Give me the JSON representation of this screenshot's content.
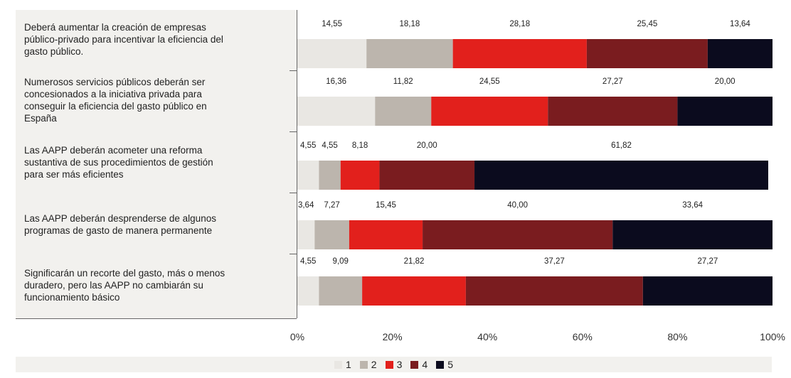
{
  "chart_data": {
    "type": "bar",
    "orientation": "horizontal",
    "stacked": true,
    "categories": [
      "Deberá aumentar la creación de empresas público-privado para incentivar la eficiencia del gasto público.",
      "Numerosos servicios públicos deberán ser concesionados a la iniciativa privada para conseguir la eficiencia del gasto público en España",
      "Las AAPP deberán acometer una reforma sustantiva de sus procedimientos de gestión para ser más eficientes",
      "Las AAPP deberán desprenderse de algunos programas de gasto de manera permanente",
      "Significarán un recorte del gasto, más o menos duradero, pero las AAPP no cambiarán su funcionamiento básico"
    ],
    "category_lines": [
      [
        "Deberá aumentar la creación de empresas",
        "público-privado para incentivar la eficiencia del",
        "gasto público."
      ],
      [
        "Numerosos servicios públicos deberán ser",
        "concesionados a la iniciativa privada para",
        "conseguir la eficiencia del gasto público en",
        "España"
      ],
      [
        "Las AAPP deberán acometer una reforma",
        "sustantiva de sus procedimientos de gestión",
        "para ser más eficientes"
      ],
      [
        "Las AAPP deberán desprenderse de algunos",
        "programas de gasto de manera permanente"
      ],
      [
        "Significarán un recorte del gasto, más o menos",
        "duradero, pero las AAPP no cambiarán su",
        "funcionamiento básico"
      ]
    ],
    "series": [
      {
        "name": "1",
        "color": "#e9e7e3",
        "values": [
          14.55,
          16.36,
          4.55,
          3.64,
          4.55
        ],
        "labels": [
          "14,55",
          "16,36",
          "4,55",
          "3,64",
          "4,55"
        ]
      },
      {
        "name": "2",
        "color": "#bcb5ad",
        "values": [
          18.18,
          11.82,
          4.55,
          7.27,
          9.09
        ],
        "labels": [
          "18,18",
          "11,82",
          "4,55",
          "7,27",
          "9,09"
        ]
      },
      {
        "name": "3",
        "color": "#e2201c",
        "values": [
          28.18,
          24.55,
          8.18,
          15.45,
          21.82
        ],
        "labels": [
          "28,18",
          "24,55",
          "8,18",
          "15,45",
          "21,82"
        ]
      },
      {
        "name": "4",
        "color": "#7a1c1f",
        "values": [
          25.45,
          27.27,
          20.0,
          40.0,
          37.27
        ],
        "labels": [
          "25,45",
          "27,27",
          "20,00",
          "40,00",
          "37,27"
        ]
      },
      {
        "name": "5",
        "color": "#0b0b1e",
        "values": [
          13.64,
          20.0,
          61.82,
          33.64,
          27.27
        ],
        "labels": [
          "13,64",
          "20,00",
          "61,82",
          "33,64",
          "27,27"
        ]
      }
    ],
    "xlim": [
      0,
      100
    ],
    "x_ticks": [
      "0%",
      "20%",
      "40%",
      "60%",
      "80%",
      "100%"
    ],
    "legend_position": "bottom",
    "grid": false
  }
}
